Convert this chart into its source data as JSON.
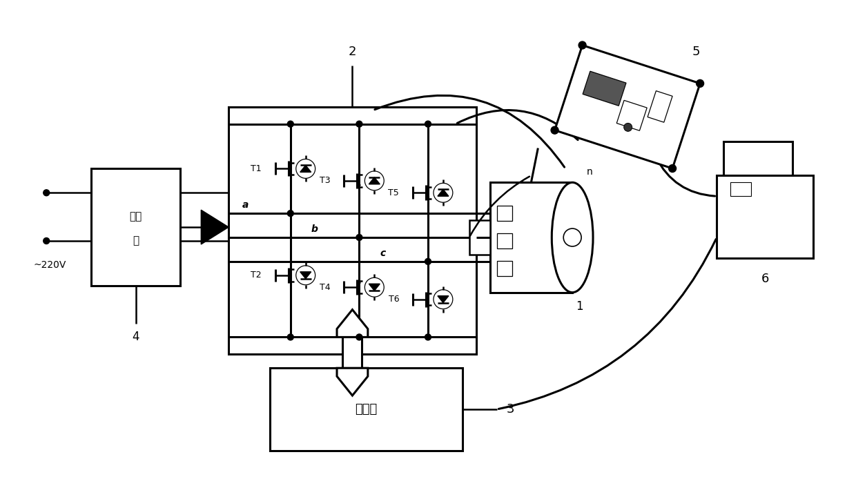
{
  "bg_color": "#ffffff",
  "figsize": [
    12.4,
    6.94
  ],
  "dpi": 100,
  "labels": {
    "label_2": "2",
    "label_4": "4",
    "label_5": "5",
    "label_1": "1",
    "label_3": "3",
    "label_6": "6",
    "label_n": "n",
    "label_a": "a",
    "label_b": "b",
    "label_c": "c",
    "label_220": "~220V",
    "label_rectifier_1": "整流",
    "label_rectifier_2": "器",
    "label_control": "控制板",
    "label_T1": "T1",
    "label_T2": "T2",
    "label_T3": "T3",
    "label_T4": "T4",
    "label_T5": "T5",
    "label_T6": "T6"
  },
  "layout": {
    "xlim": [
      0,
      124
    ],
    "ylim": [
      0,
      69.4
    ]
  }
}
